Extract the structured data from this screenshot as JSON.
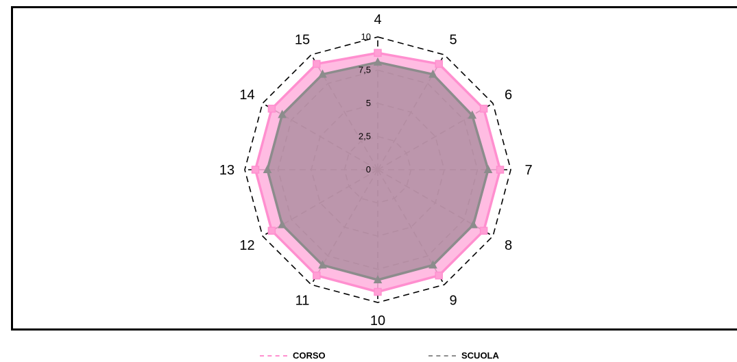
{
  "chart_data": {
    "type": "radar",
    "categories": [
      "4",
      "5",
      "6",
      "7",
      "8",
      "9",
      "10",
      "11",
      "12",
      "13",
      "14",
      "15"
    ],
    "r_ticks": [
      "0",
      "2,5",
      "5",
      "7,5",
      "10"
    ],
    "r_range": [
      0,
      10
    ],
    "grid": true,
    "legend_position": "bottom",
    "series": [
      {
        "name": "CORSO",
        "color": "#ff8fcf",
        "fill": "#ffb0dd",
        "marker": "square",
        "values": [
          8.8,
          9.2,
          9.2,
          9.2,
          9.2,
          9.2,
          9.2,
          9.2,
          9.2,
          9.2,
          9.2,
          9.2
        ]
      },
      {
        "name": "SCUOLA",
        "color": "#8c8c8c",
        "fill": "#a58a99",
        "marker": "triangle",
        "values": [
          8.1,
          8.3,
          8.2,
          8.3,
          8.3,
          8.3,
          8.3,
          8.3,
          8.3,
          8.3,
          8.3,
          8.3
        ]
      }
    ]
  }
}
